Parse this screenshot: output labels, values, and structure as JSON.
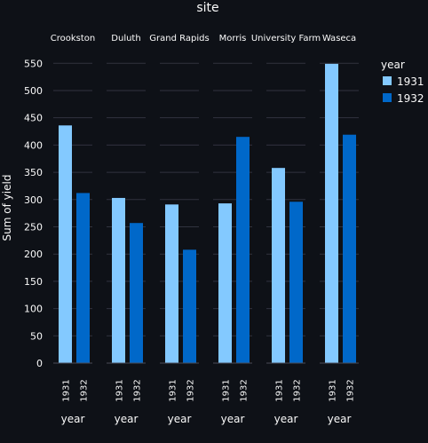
{
  "chart_data": {
    "type": "bar",
    "title": "site",
    "ylabel": "Sum of yield",
    "xlabel": "year",
    "facet_label": "site",
    "facets": [
      "Crookston",
      "Duluth",
      "Grand Rapids",
      "Morris",
      "University Farm",
      "Waseca"
    ],
    "categories": [
      "1931",
      "1932"
    ],
    "series": [
      {
        "facet": "Crookston",
        "values": [
          436,
          312
        ]
      },
      {
        "facet": "Duluth",
        "values": [
          303,
          257
        ]
      },
      {
        "facet": "Grand Rapids",
        "values": [
          291,
          208
        ]
      },
      {
        "facet": "Morris",
        "values": [
          293,
          415
        ]
      },
      {
        "facet": "University Farm",
        "values": [
          358,
          296
        ]
      },
      {
        "facet": "Waseca",
        "values": [
          549,
          419
        ]
      }
    ],
    "yticks": [
      0,
      50,
      100,
      150,
      200,
      250,
      300,
      350,
      400,
      450,
      500,
      550
    ],
    "ylim": [
      0,
      570
    ],
    "grid": true,
    "legend": {
      "title": "year",
      "position": "right",
      "entries": [
        {
          "label": "1931",
          "color": "#83c9ff"
        },
        {
          "label": "1932",
          "color": "#0068c9"
        }
      ]
    },
    "colors": {
      "background": "#0e1117",
      "grid": "#31333f",
      "text": "#fafafa"
    }
  }
}
